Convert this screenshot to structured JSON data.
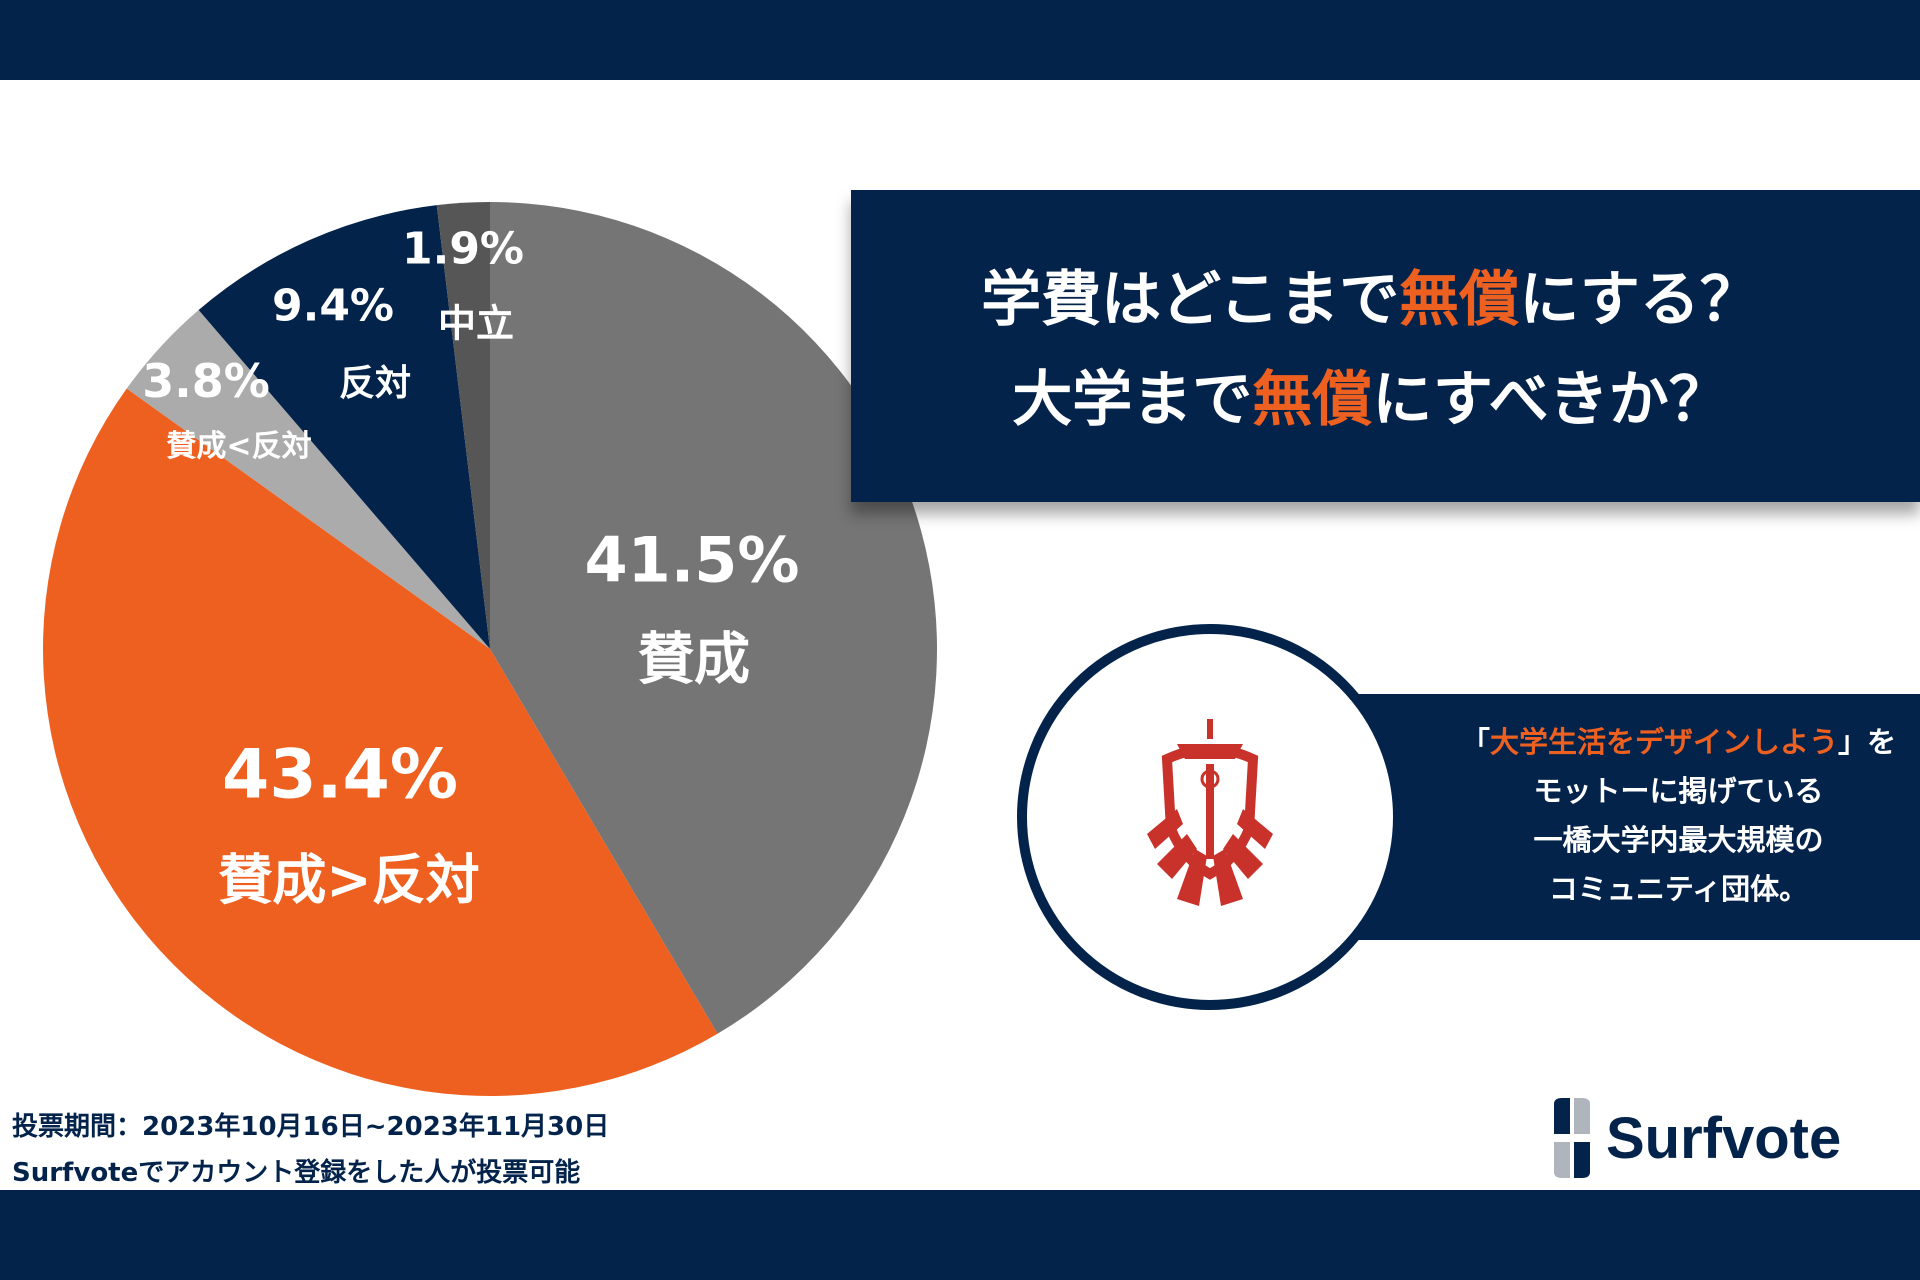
{
  "chart_data": {
    "type": "pie",
    "start": "12 o'clock, clockwise",
    "slices": [
      {
        "label": "賛成",
        "value": 41.5,
        "display": "41.5%",
        "color": "#757575"
      },
      {
        "label": "賛成>反対",
        "value": 43.4,
        "display": "43.4%",
        "color": "#ee6020"
      },
      {
        "label": "賛成<反対",
        "value": 3.8,
        "display": "3.8%",
        "color": "#ababab"
      },
      {
        "label": "反対",
        "value": 9.4,
        "display": "9.4%",
        "color": "#03234b"
      },
      {
        "label": "中立",
        "value": 1.9,
        "display": "1.9%",
        "color": "#565656"
      }
    ]
  },
  "title": {
    "line1_a": "学費はどこまで",
    "line1_hl": "無償",
    "line1_b": "にする？",
    "line2_a": "大学まで",
    "line2_hl": "無償",
    "line2_b": "にすべきか？"
  },
  "motto": {
    "open": "「",
    "hl": "大学生活をデザインしよう",
    "close": "」を",
    "line2": "モットーに掲げている",
    "line3": "一橋大学内最大規模の",
    "line4": "コミュニティ団体。"
  },
  "footer": {
    "line1": "投票期間：2023年10月16日~2023年11月30日",
    "line2": "Surfvoteでアカウント登録をした人が投票可能"
  },
  "brand": {
    "name": "Surfvote"
  },
  "colors": {
    "navy": "#03234b",
    "orange": "#ee6020",
    "emblem": "#c8322a"
  }
}
